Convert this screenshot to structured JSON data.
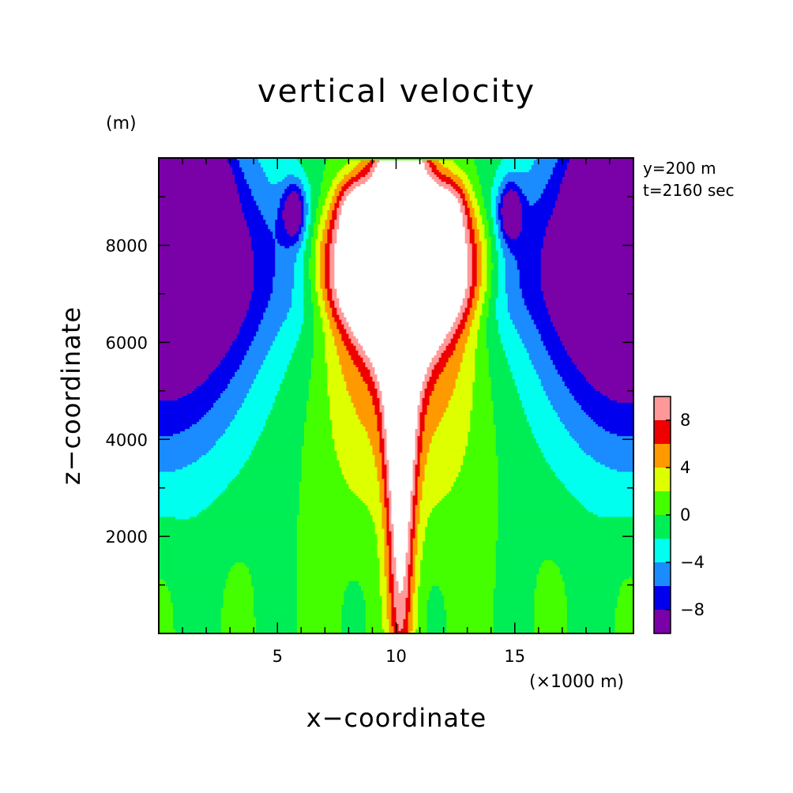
{
  "page": {
    "title": "vertical velocity",
    "z_unit": "(m)",
    "info_line_1": "y=200 m",
    "info_line_2": "t=2160 sec",
    "x_unit": "(×1000 m)",
    "xlabel": "x−coordinate",
    "ylabel": "z−coordinate"
  },
  "chart_data": {
    "type": "heatmap",
    "title": "vertical velocity",
    "xlabel": "x−coordinate",
    "ylabel": "z−coordinate",
    "xlim": [
      0,
      20
    ],
    "ylim": [
      0,
      9800
    ],
    "x_tick_labels": [
      "5",
      "10",
      "15"
    ],
    "x_ticks": [
      5,
      10,
      15
    ],
    "y_tick_labels": [
      "2000",
      "4000",
      "6000",
      "8000"
    ],
    "y_ticks": [
      2000,
      4000,
      6000,
      8000
    ],
    "colorbar": {
      "levels": [
        -10,
        -8,
        -6,
        -4,
        -2,
        0,
        2,
        4,
        6,
        8,
        10
      ],
      "tick_labels": [
        "−8",
        "−4",
        "0",
        "4",
        "8"
      ],
      "tick_values": [
        -8,
        -4,
        0,
        4,
        8
      ],
      "colors": [
        "#7a00a8",
        "#0000ee",
        "#1a8cff",
        "#00ffee",
        "#00ee55",
        "#44ff00",
        "#ddff00",
        "#ff9900",
        "#ee0000",
        "#ff9999"
      ],
      "above_max_color": "#ffffff"
    },
    "features": {
      "central_updraft_x": 10.2,
      "central_updraft_top_z": 9700,
      "downdraft_core_left": {
        "x": 2.1,
        "z": 9000
      },
      "downdraft_core_right": {
        "x": 18.2,
        "z": 9000
      }
    }
  }
}
